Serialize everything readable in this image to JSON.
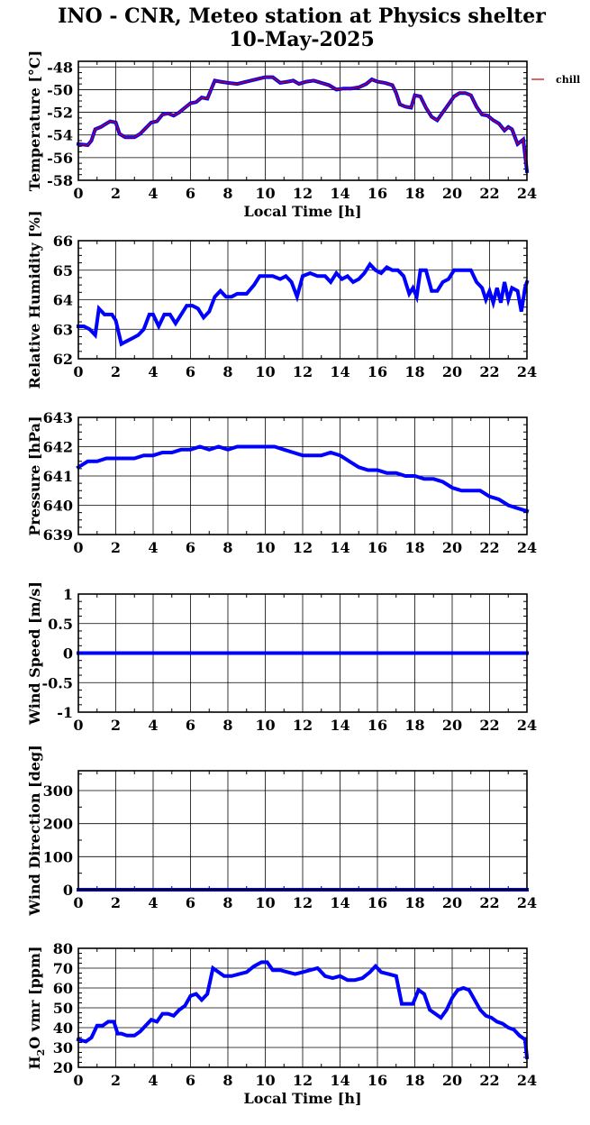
{
  "title_line1": "INO - CNR, Meteo station at Physics shelter",
  "title_line2": "10-May-2025",
  "colors": {
    "series": "#0000ff",
    "windchill": "#cc0000"
  },
  "chart_data": [
    {
      "type": "line",
      "ylabel": "Temperature [°C]",
      "xlabel": "Local Time [h]",
      "xlim": [
        0,
        24
      ],
      "ylim": [
        -58,
        -47.5
      ],
      "yticks": [
        -58,
        -56,
        -54,
        -52,
        -50,
        -48
      ],
      "xticks": [
        0,
        2,
        4,
        6,
        8,
        10,
        12,
        14,
        16,
        18,
        20,
        22,
        24
      ],
      "grid": true,
      "legend": "right",
      "series": [
        {
          "name": "",
          "color": "#0000ff",
          "x": [
            0,
            0.5,
            0.7,
            0.9,
            1.2,
            1.5,
            1.7,
            2.0,
            2.2,
            2.5,
            3.0,
            3.3,
            3.6,
            3.9,
            4.2,
            4.5,
            4.8,
            5.1,
            5.4,
            5.7,
            6.0,
            6.3,
            6.6,
            6.9,
            7.1,
            7.3,
            7.6,
            8.0,
            8.5,
            9.0,
            9.5,
            10.0,
            10.4,
            10.8,
            11.2,
            11.5,
            11.8,
            12.2,
            12.6,
            13.0,
            13.4,
            13.8,
            14.2,
            14.6,
            15.0,
            15.4,
            15.7,
            16.0,
            16.4,
            16.8,
            17.0,
            17.2,
            17.5,
            17.8,
            18.0,
            18.3,
            18.6,
            18.9,
            19.2,
            19.5,
            19.8,
            20.1,
            20.4,
            20.7,
            21.0,
            21.3,
            21.6,
            21.9,
            22.2,
            22.5,
            22.8,
            23.0,
            23.2,
            23.5,
            23.8,
            24.0
          ],
          "y": [
            -54.8,
            -54.9,
            -54.5,
            -53.5,
            -53.3,
            -53.0,
            -52.8,
            -52.9,
            -53.9,
            -54.2,
            -54.2,
            -53.9,
            -53.4,
            -52.9,
            -52.8,
            -52.2,
            -52.1,
            -52.3,
            -52.0,
            -51.6,
            -51.2,
            -51.1,
            -50.7,
            -50.8,
            -50.0,
            -49.2,
            -49.3,
            -49.4,
            -49.5,
            -49.3,
            -49.1,
            -48.9,
            -48.9,
            -49.4,
            -49.3,
            -49.2,
            -49.5,
            -49.3,
            -49.2,
            -49.4,
            -49.6,
            -50.0,
            -49.9,
            -49.9,
            -49.8,
            -49.5,
            -49.1,
            -49.3,
            -49.4,
            -49.6,
            -50.3,
            -51.3,
            -51.5,
            -51.6,
            -50.5,
            -50.6,
            -51.6,
            -52.4,
            -52.7,
            -52.0,
            -51.3,
            -50.6,
            -50.3,
            -50.3,
            -50.5,
            -51.5,
            -52.2,
            -52.3,
            -52.7,
            -53.0,
            -53.6,
            -53.3,
            -53.5,
            -54.8,
            -54.4,
            -57.2
          ]
        },
        {
          "name": "chill",
          "color": "#cc0000",
          "x": [
            0,
            0.5,
            0.7,
            0.9,
            1.2,
            1.5,
            1.7,
            2.0,
            2.2,
            2.5,
            3.0,
            3.3,
            3.6,
            3.9,
            4.2,
            4.5,
            4.8,
            5.1,
            5.4,
            5.7,
            6.0,
            6.3,
            6.6,
            6.9,
            7.1,
            7.3,
            7.6,
            8.0,
            8.5,
            9.0,
            9.5,
            10.0,
            10.4,
            10.8,
            11.2,
            11.5,
            11.8,
            12.2,
            12.6,
            13.0,
            13.4,
            13.8,
            14.2,
            14.6,
            15.0,
            15.4,
            15.7,
            16.0,
            16.4,
            16.8,
            17.0,
            17.2,
            17.5,
            17.8,
            18.0,
            18.3,
            18.6,
            18.9,
            19.2,
            19.5,
            19.8,
            20.1,
            20.4,
            20.7,
            21.0,
            21.3,
            21.6,
            21.9,
            22.2,
            22.5,
            22.8,
            23.0,
            23.2,
            23.5,
            23.8,
            24.0
          ],
          "y": [
            -54.8,
            -54.9,
            -54.5,
            -53.5,
            -53.3,
            -53.0,
            -52.8,
            -52.9,
            -53.9,
            -54.2,
            -54.2,
            -53.9,
            -53.4,
            -52.9,
            -52.8,
            -52.2,
            -52.1,
            -52.3,
            -52.0,
            -51.6,
            -51.2,
            -51.1,
            -50.7,
            -50.8,
            -50.0,
            -49.2,
            -49.3,
            -49.4,
            -49.5,
            -49.3,
            -49.1,
            -48.9,
            -48.9,
            -49.4,
            -49.3,
            -49.2,
            -49.5,
            -49.3,
            -49.2,
            -49.4,
            -49.6,
            -50.0,
            -49.9,
            -49.9,
            -49.8,
            -49.5,
            -49.1,
            -49.3,
            -49.4,
            -49.6,
            -50.3,
            -51.3,
            -51.5,
            -51.6,
            -50.5,
            -50.6,
            -51.6,
            -52.4,
            -52.7,
            -52.0,
            -51.3,
            -50.6,
            -50.3,
            -50.3,
            -50.5,
            -51.5,
            -52.2,
            -52.3,
            -52.7,
            -53.0,
            -53.6,
            -53.3,
            -53.5,
            -54.8,
            -54.4,
            -57.2
          ]
        }
      ]
    },
    {
      "type": "line",
      "ylabel": "Relative Humidity [%]",
      "xlabel": "",
      "xlim": [
        0,
        24
      ],
      "ylim": [
        62,
        66
      ],
      "yticks": [
        62,
        63,
        64,
        65,
        66
      ],
      "xticks": [
        0,
        2,
        4,
        6,
        8,
        10,
        12,
        14,
        16,
        18,
        20,
        22,
        24
      ],
      "grid": true,
      "series": [
        {
          "name": "",
          "color": "#0000ff",
          "x": [
            0,
            0.3,
            0.6,
            0.9,
            1.1,
            1.4,
            1.8,
            2.0,
            2.3,
            2.6,
            2.9,
            3.2,
            3.5,
            3.8,
            4.0,
            4.3,
            4.6,
            4.9,
            5.2,
            5.5,
            5.8,
            6.1,
            6.4,
            6.7,
            7.0,
            7.3,
            7.6,
            7.9,
            8.2,
            8.5,
            9.0,
            9.4,
            9.7,
            10.0,
            10.4,
            10.8,
            11.1,
            11.4,
            11.7,
            12.0,
            12.4,
            12.8,
            13.2,
            13.5,
            13.8,
            14.1,
            14.4,
            14.7,
            15.0,
            15.3,
            15.6,
            15.9,
            16.2,
            16.5,
            16.8,
            17.1,
            17.4,
            17.7,
            17.9,
            18.1,
            18.3,
            18.6,
            18.9,
            19.2,
            19.5,
            19.8,
            20.1,
            20.4,
            20.7,
            21.0,
            21.3,
            21.6,
            21.8,
            22.0,
            22.2,
            22.4,
            22.6,
            22.8,
            23.0,
            23.2,
            23.5,
            23.7,
            23.9,
            24.0
          ],
          "y": [
            63.1,
            63.1,
            63.0,
            62.8,
            63.7,
            63.5,
            63.5,
            63.3,
            62.5,
            62.6,
            62.7,
            62.8,
            63.0,
            63.5,
            63.5,
            63.1,
            63.5,
            63.5,
            63.2,
            63.5,
            63.8,
            63.8,
            63.7,
            63.4,
            63.6,
            64.1,
            64.3,
            64.1,
            64.1,
            64.2,
            64.2,
            64.5,
            64.8,
            64.8,
            64.8,
            64.7,
            64.8,
            64.6,
            64.1,
            64.8,
            64.9,
            64.8,
            64.8,
            64.6,
            64.9,
            64.7,
            64.8,
            64.6,
            64.7,
            64.9,
            65.2,
            65.0,
            64.9,
            65.1,
            65.0,
            65.0,
            64.8,
            64.2,
            64.4,
            64.1,
            65.0,
            65.0,
            64.3,
            64.3,
            64.6,
            64.7,
            65.0,
            65.0,
            65.0,
            65.0,
            64.6,
            64.4,
            64.0,
            64.3,
            63.9,
            64.4,
            63.9,
            64.6,
            64.0,
            64.4,
            64.3,
            63.6,
            64.4,
            64.6
          ]
        }
      ]
    },
    {
      "type": "line",
      "ylabel": "Pressure [hPa]",
      "xlabel": "",
      "xlim": [
        0,
        24
      ],
      "ylim": [
        639,
        643
      ],
      "yticks": [
        639,
        640,
        641,
        642,
        643
      ],
      "xticks": [
        0,
        2,
        4,
        6,
        8,
        10,
        12,
        14,
        16,
        18,
        20,
        22,
        24
      ],
      "grid": true,
      "series": [
        {
          "name": "",
          "color": "#0000ff",
          "x": [
            0,
            0.5,
            1.0,
            1.5,
            2.0,
            2.5,
            3.0,
            3.5,
            4.0,
            4.5,
            5.0,
            5.5,
            6.0,
            6.5,
            7.0,
            7.5,
            8.0,
            8.5,
            9.0,
            9.5,
            10.0,
            10.5,
            11.0,
            11.5,
            12.0,
            12.5,
            13.0,
            13.5,
            14.0,
            14.5,
            15.0,
            15.5,
            16.0,
            16.5,
            17.0,
            17.5,
            18.0,
            18.5,
            19.0,
            19.5,
            20.0,
            20.5,
            21.0,
            21.5,
            22.0,
            22.5,
            23.0,
            23.5,
            24.0
          ],
          "y": [
            641.3,
            641.5,
            641.5,
            641.6,
            641.6,
            641.6,
            641.6,
            641.7,
            641.7,
            641.8,
            641.8,
            641.9,
            641.9,
            642.0,
            641.9,
            642.0,
            641.9,
            642.0,
            642.0,
            642.0,
            642.0,
            642.0,
            641.9,
            641.8,
            641.7,
            641.7,
            641.7,
            641.8,
            641.7,
            641.5,
            641.3,
            641.2,
            641.2,
            641.1,
            641.1,
            641.0,
            641.0,
            640.9,
            640.9,
            640.8,
            640.6,
            640.5,
            640.5,
            640.5,
            640.3,
            640.2,
            640.0,
            639.9,
            639.8
          ]
        }
      ]
    },
    {
      "type": "line",
      "ylabel": "Wind Speed [m/s]",
      "xlabel": "",
      "xlim": [
        0,
        24
      ],
      "ylim": [
        -1,
        1
      ],
      "yticks": [
        -1,
        -0.5,
        0,
        0.5,
        1
      ],
      "xticks": [
        0,
        2,
        4,
        6,
        8,
        10,
        12,
        14,
        16,
        18,
        20,
        22,
        24
      ],
      "grid": true,
      "series": [
        {
          "name": "",
          "color": "#0000ff",
          "x": [
            0,
            24
          ],
          "y": [
            0,
            0
          ]
        }
      ]
    },
    {
      "type": "line",
      "ylabel": "Wind Direction [deg]",
      "xlabel": "",
      "xlim": [
        0,
        24
      ],
      "ylim": [
        0,
        360
      ],
      "yticks": [
        0,
        100,
        200,
        300
      ],
      "xticks": [
        0,
        2,
        4,
        6,
        8,
        10,
        12,
        14,
        16,
        18,
        20,
        22,
        24
      ],
      "grid": true,
      "series": [
        {
          "name": "",
          "color": "#0000ff",
          "x": [
            0,
            24
          ],
          "y": [
            0,
            0
          ]
        }
      ]
    },
    {
      "type": "line",
      "ylabel": "H2O vmr [ppm]",
      "xlabel": "Local Time [h]",
      "xlim": [
        0,
        24
      ],
      "ylim": [
        20,
        80
      ],
      "yticks": [
        20,
        30,
        40,
        50,
        60,
        70,
        80
      ],
      "xticks": [
        0,
        2,
        4,
        6,
        8,
        10,
        12,
        14,
        16,
        18,
        20,
        22,
        24
      ],
      "grid": true,
      "series": [
        {
          "name": "",
          "color": "#0000ff",
          "x": [
            0,
            0.4,
            0.7,
            1.0,
            1.3,
            1.6,
            1.9,
            2.1,
            2.3,
            2.6,
            3.0,
            3.3,
            3.6,
            3.9,
            4.2,
            4.5,
            4.8,
            5.1,
            5.4,
            5.7,
            6.0,
            6.3,
            6.6,
            6.9,
            7.2,
            7.5,
            7.8,
            8.2,
            8.6,
            9.0,
            9.4,
            9.8,
            10.1,
            10.4,
            10.8,
            11.2,
            11.6,
            12.0,
            12.4,
            12.8,
            13.2,
            13.6,
            14.0,
            14.4,
            14.8,
            15.2,
            15.6,
            15.9,
            16.2,
            16.6,
            17.0,
            17.3,
            17.6,
            17.9,
            18.2,
            18.5,
            18.8,
            19.1,
            19.4,
            19.7,
            20.0,
            20.3,
            20.6,
            20.9,
            21.2,
            21.5,
            21.8,
            22.1,
            22.4,
            22.7,
            23.0,
            23.3,
            23.6,
            23.9,
            24.0
          ],
          "y": [
            34,
            33,
            35,
            41,
            41,
            43,
            43,
            37,
            37,
            36,
            36,
            38,
            41,
            44,
            43,
            47,
            47,
            46,
            49,
            51,
            56,
            57,
            54,
            57,
            70,
            68,
            66,
            66,
            67,
            68,
            71,
            73,
            73,
            69,
            69,
            68,
            67,
            68,
            69,
            70,
            66,
            65,
            66,
            64,
            64,
            65,
            68,
            71,
            68,
            67,
            66,
            52,
            52,
            52,
            59,
            57,
            49,
            47,
            45,
            49,
            55,
            59,
            60,
            59,
            54,
            49,
            46,
            45,
            43,
            42,
            40,
            39,
            36,
            34,
            25
          ]
        }
      ]
    }
  ]
}
